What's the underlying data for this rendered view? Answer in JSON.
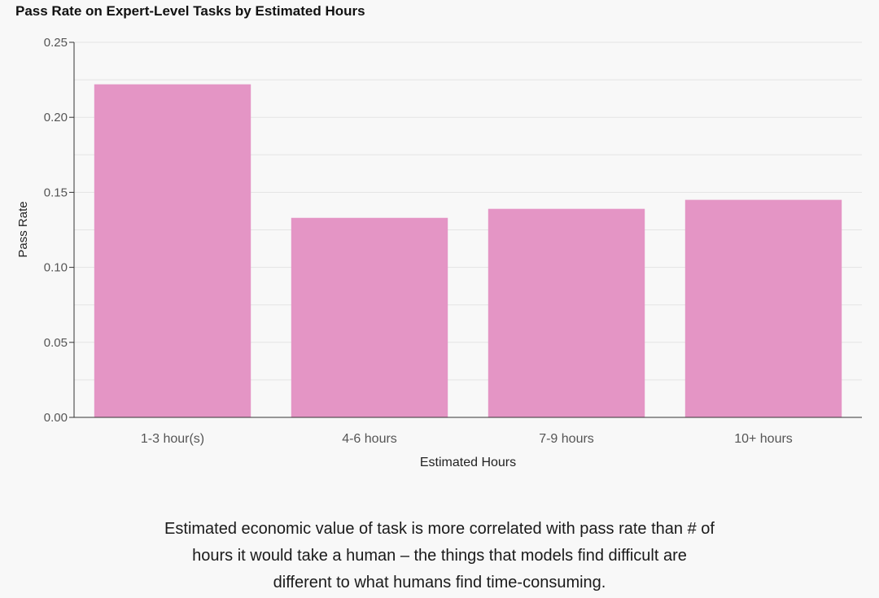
{
  "chart_data": {
    "type": "bar",
    "title": "Pass Rate on Expert-Level Tasks by Estimated Hours",
    "xlabel": "Estimated Hours",
    "ylabel": "Pass Rate",
    "categories": [
      "1-3 hour(s)",
      "4-6 hours",
      "7-9 hours",
      "10+ hours"
    ],
    "values": [
      0.222,
      0.133,
      0.139,
      0.145
    ],
    "ylim": [
      0,
      0.25
    ],
    "yticks": [
      "0.00",
      "0.05",
      "0.10",
      "0.15",
      "0.20",
      "0.25"
    ],
    "grid": true,
    "bar_color": "#e495c5"
  },
  "caption": "Estimated economic value of task is more correlated with pass rate than # of hours it would take a human – the things that models find difficult are different to what humans find time-consuming."
}
